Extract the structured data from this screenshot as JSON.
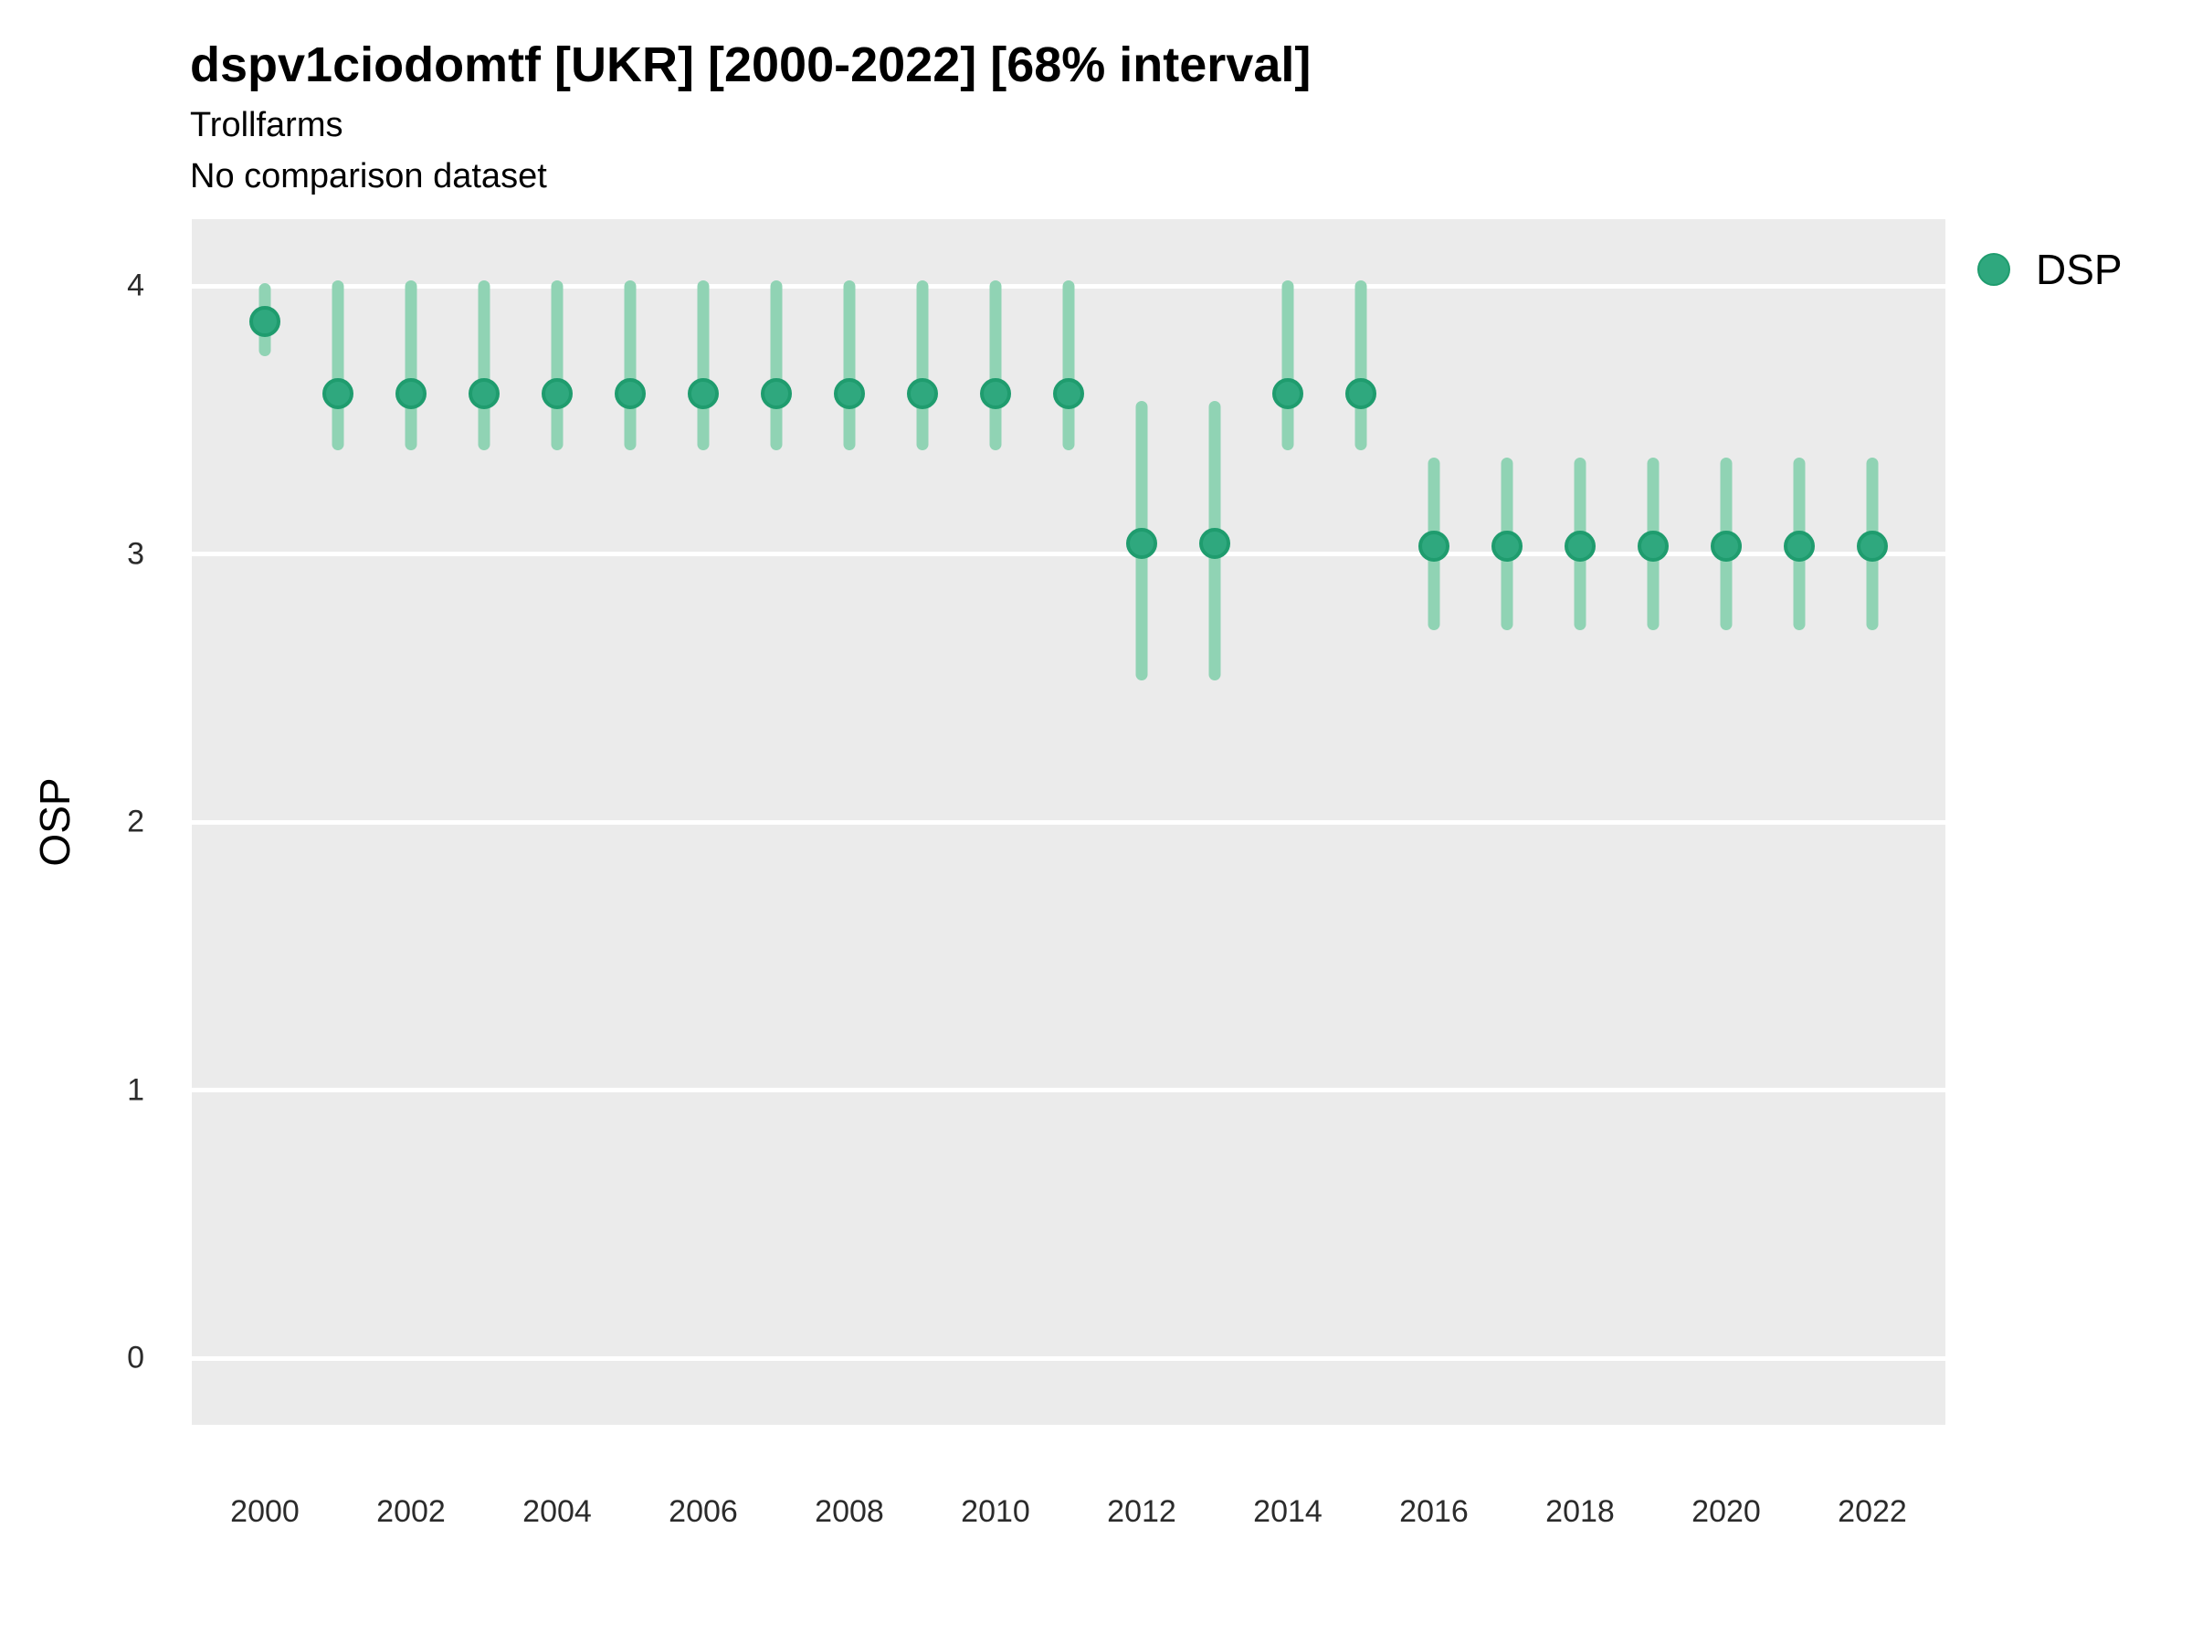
{
  "header": {
    "title": "dspv1ciodomtf [UKR] [2000-2022] [68% interval]",
    "subtitle": "Trollfarms",
    "note": "No comparison dataset"
  },
  "colors": {
    "point_fill": "#2fa87e",
    "point_stroke": "#1f9c6e",
    "interval_bar": "#90d3b4",
    "panel_background": "#ebebeb",
    "gridline": "#ffffff"
  },
  "chart_data": {
    "type": "scatter",
    "subtype": "pointrange",
    "title": "dspv1ciodomtf [UKR] [2000-2022] [68% interval]",
    "subtitle": "Trollfarms",
    "note": "No comparison dataset",
    "xlabel": "",
    "ylabel": "OSP",
    "interval_label": "68% interval",
    "xlim": [
      1999,
      2023
    ],
    "ylim": [
      -0.26,
      4.25
    ],
    "x_ticks": [
      2000,
      2002,
      2004,
      2006,
      2008,
      2010,
      2012,
      2014,
      2016,
      2018,
      2020,
      2022
    ],
    "y_ticks": [
      0,
      1,
      2,
      3,
      4
    ],
    "grid": "major white gridlines on gray panel, no minor",
    "legend_position": "right",
    "series": [
      {
        "name": "DSP",
        "color": "#2fa87e",
        "points": [
          {
            "year": 2000,
            "value": 3.87,
            "lo": 3.76,
            "hi": 3.99
          },
          {
            "year": 2001,
            "value": 3.6,
            "lo": 3.41,
            "hi": 4.0
          },
          {
            "year": 2002,
            "value": 3.6,
            "lo": 3.41,
            "hi": 4.0
          },
          {
            "year": 2003,
            "value": 3.6,
            "lo": 3.41,
            "hi": 4.0
          },
          {
            "year": 2004,
            "value": 3.6,
            "lo": 3.41,
            "hi": 4.0
          },
          {
            "year": 2005,
            "value": 3.6,
            "lo": 3.41,
            "hi": 4.0
          },
          {
            "year": 2006,
            "value": 3.6,
            "lo": 3.41,
            "hi": 4.0
          },
          {
            "year": 2007,
            "value": 3.6,
            "lo": 3.41,
            "hi": 4.0
          },
          {
            "year": 2008,
            "value": 3.6,
            "lo": 3.41,
            "hi": 4.0
          },
          {
            "year": 2009,
            "value": 3.6,
            "lo": 3.41,
            "hi": 4.0
          },
          {
            "year": 2010,
            "value": 3.6,
            "lo": 3.41,
            "hi": 4.0
          },
          {
            "year": 2011,
            "value": 3.6,
            "lo": 3.41,
            "hi": 4.0
          },
          {
            "year": 2012,
            "value": 3.04,
            "lo": 2.55,
            "hi": 3.55
          },
          {
            "year": 2013,
            "value": 3.04,
            "lo": 2.55,
            "hi": 3.55
          },
          {
            "year": 2014,
            "value": 3.6,
            "lo": 3.41,
            "hi": 4.0
          },
          {
            "year": 2015,
            "value": 3.6,
            "lo": 3.41,
            "hi": 4.0
          },
          {
            "year": 2016,
            "value": 3.03,
            "lo": 2.74,
            "hi": 3.34
          },
          {
            "year": 2017,
            "value": 3.03,
            "lo": 2.74,
            "hi": 3.34
          },
          {
            "year": 2018,
            "value": 3.03,
            "lo": 2.74,
            "hi": 3.34
          },
          {
            "year": 2019,
            "value": 3.03,
            "lo": 2.74,
            "hi": 3.34
          },
          {
            "year": 2020,
            "value": 3.03,
            "lo": 2.74,
            "hi": 3.34
          },
          {
            "year": 2021,
            "value": 3.03,
            "lo": 2.74,
            "hi": 3.34
          },
          {
            "year": 2022,
            "value": 3.03,
            "lo": 2.74,
            "hi": 3.34
          }
        ]
      }
    ]
  }
}
